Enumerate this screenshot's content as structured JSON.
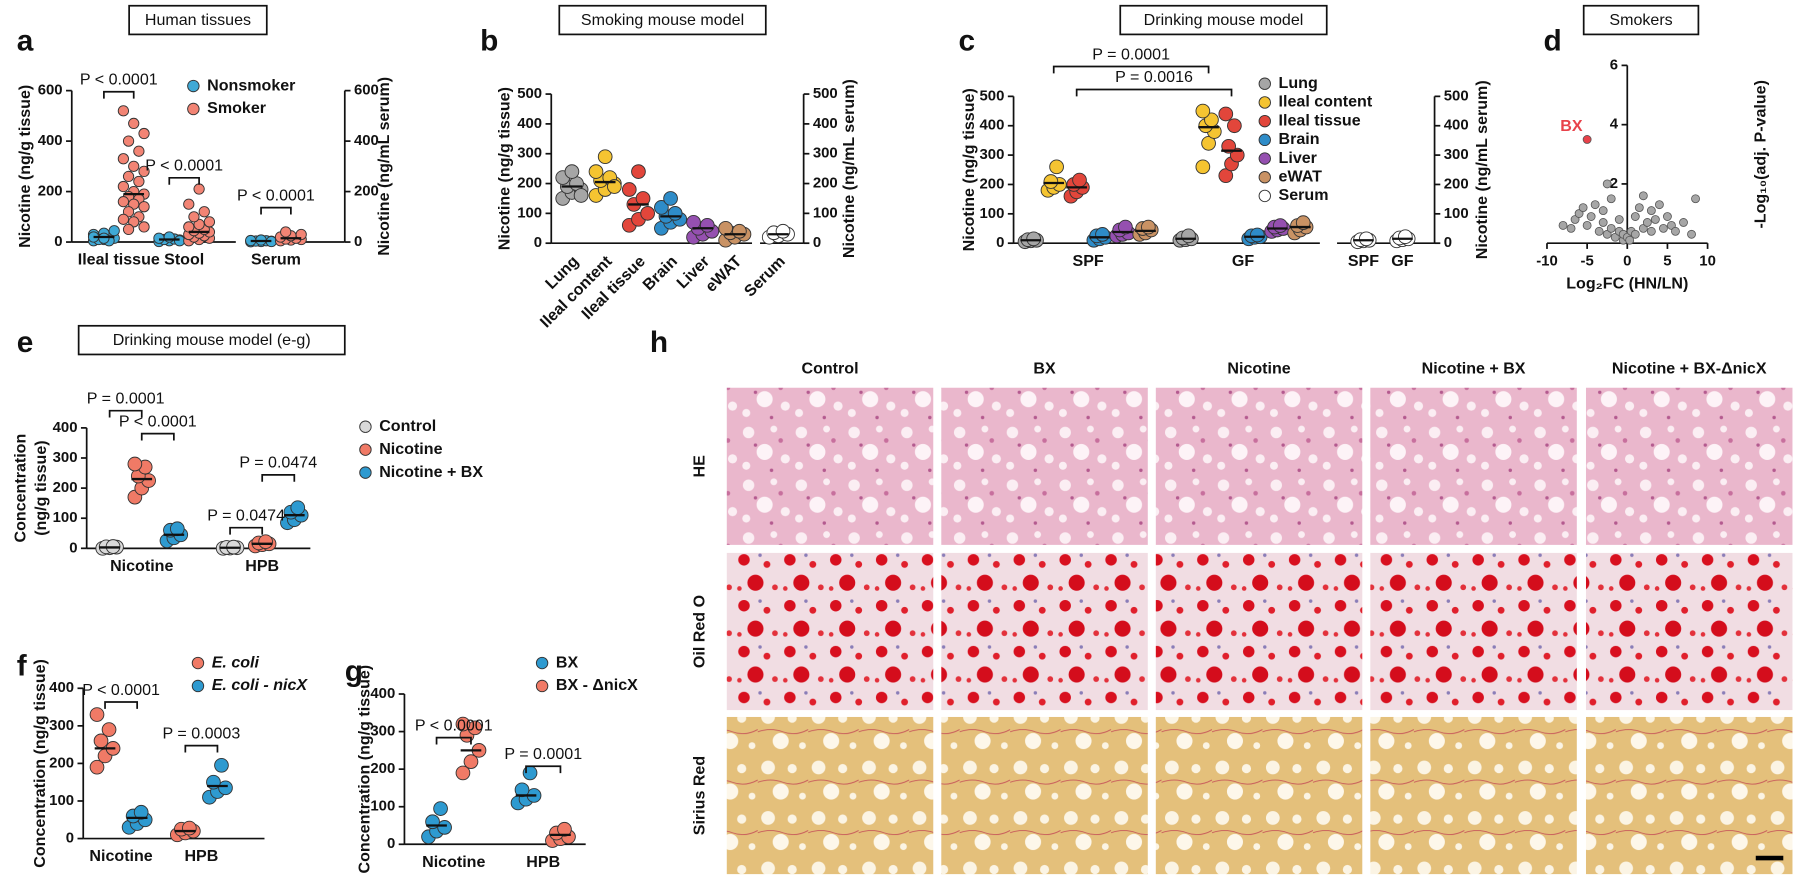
{
  "chart_data": [
    {
      "type": "dotplot",
      "letter": "a",
      "title": "Human tissues",
      "ylabel": "Nicotine (ng/g tissue)",
      "y2label": "Nicotine (ng/mL serum)",
      "categories": [
        "Ileal tissue",
        "Stool",
        "Serum"
      ],
      "category_axis": [
        "y",
        "y",
        "y2"
      ],
      "ylim": [
        0,
        600
      ],
      "yticks": [
        0,
        200,
        400,
        600
      ],
      "y2lim": [
        0,
        600
      ],
      "y2ticks": [
        0,
        200,
        400,
        600
      ],
      "series": [
        {
          "name": "Nonsmoker",
          "color": "#3fa9d6",
          "values": [
            [
              5,
              10,
              15,
              20,
              25,
              30,
              35,
              45,
              10,
              5,
              20,
              15
            ],
            [
              2,
              5,
              8,
              10,
              12,
              15,
              20,
              5
            ],
            [
              1,
              2,
              3,
              4,
              5,
              6,
              8,
              2
            ]
          ],
          "means": [
            20,
            10,
            4
          ]
        },
        {
          "name": "Smoker",
          "color": "#f28474",
          "values": [
            [
              520,
              470,
              430,
              400,
              360,
              330,
              300,
              280,
              260,
              240,
              220,
              200,
              190,
              180,
              170,
              160,
              150,
              140,
              120,
              100,
              90,
              80,
              60,
              50
            ],
            [
              5,
              10,
              15,
              20,
              25,
              30,
              35,
              40,
              45,
              50,
              60,
              70,
              80,
              100,
              120,
              150,
              210
            ],
            [
              5,
              8,
              10,
              12,
              15,
              20,
              25,
              30,
              40
            ]
          ],
          "means": [
            190,
            40,
            15
          ]
        }
      ],
      "pvalues": [
        "P < 0.0001",
        "P < 0.0001",
        "P < 0.0001"
      ]
    },
    {
      "type": "dotplot",
      "letter": "b",
      "title": "Smoking mouse model",
      "ylabel": "Nicotine (ng/g tissue)",
      "y2label": "Nicotine (ng/mL serum)",
      "categories": [
        "Lung",
        "Ileal content",
        "Ileal tissue",
        "Brain",
        "Liver",
        "eWAT",
        "Serum"
      ],
      "ylim": [
        0,
        500
      ],
      "yticks": [
        0,
        100,
        200,
        300,
        400,
        500
      ],
      "y2lim": [
        0,
        500
      ],
      "y2ticks": [
        0,
        100,
        200,
        300,
        400,
        500
      ],
      "series": [
        {
          "color": "#a6a6a6",
          "values": [
            [
              150,
              170,
              180,
              190,
              200,
              220,
              240,
              160
            ],
            null,
            null,
            null,
            null,
            null,
            null
          ],
          "means": [
            190,
            null,
            null,
            null,
            null,
            null,
            null
          ]
        },
        {
          "color": "#f5c431",
          "values": [
            null,
            [
              160,
              180,
              200,
              210,
              220,
              240,
              290,
              190
            ],
            null,
            null,
            null,
            null,
            null
          ],
          "means": [
            null,
            205,
            null,
            null,
            null,
            null,
            null
          ]
        },
        {
          "color": "#e2463b",
          "values": [
            null,
            null,
            [
              60,
              80,
              100,
              130,
              150,
              180,
              240
            ],
            null,
            null,
            null,
            null
          ],
          "means": [
            null,
            null,
            130,
            null,
            null,
            null,
            null
          ]
        },
        {
          "color": "#2e8cc8",
          "values": [
            null,
            null,
            null,
            [
              50,
              70,
              80,
              90,
              100,
              120,
              150
            ],
            null,
            null,
            null
          ],
          "means": [
            null,
            null,
            null,
            90,
            null,
            null,
            null
          ]
        },
        {
          "color": "#9550b0",
          "values": [
            null,
            null,
            null,
            null,
            [
              20,
              30,
              40,
              50,
              60,
              70
            ],
            null,
            null
          ],
          "means": [
            null,
            null,
            null,
            null,
            50,
            null,
            null
          ]
        },
        {
          "color": "#c99264",
          "values": [
            null,
            null,
            null,
            null,
            null,
            [
              10,
              20,
              30,
              35,
              40,
              50
            ],
            null
          ],
          "means": [
            null,
            null,
            null,
            null,
            null,
            30,
            null
          ]
        },
        {
          "color": "#ffffff",
          "axis": "y2",
          "values": [
            null,
            null,
            null,
            null,
            null,
            null,
            [
              20,
              25,
              30,
              35,
              40
            ]
          ],
          "means": [
            null,
            null,
            null,
            null,
            null,
            null,
            30
          ]
        }
      ]
    },
    {
      "type": "dotplot",
      "letter": "c",
      "title": "Drinking mouse model",
      "ylabel": "Nicotine (ng/g tissue)",
      "y2label": "Nicotine (ng/mL serum)",
      "categories": [
        "SPF",
        "GF",
        "SPF",
        "GF"
      ],
      "ylim": [
        0,
        500
      ],
      "yticks": [
        0,
        100,
        200,
        300,
        400,
        500
      ],
      "y2lim": [
        0,
        500
      ],
      "y2ticks": [
        0,
        100,
        200,
        300,
        400,
        500
      ],
      "series": [
        {
          "name": "Lung",
          "color": "#a6a6a6",
          "values": [
            [
              5,
              8,
              10,
              12,
              15
            ],
            [
              10,
              12,
              15,
              18,
              25
            ],
            null,
            null
          ],
          "means": [
            10,
            15,
            null,
            null
          ]
        },
        {
          "name": "Ileal content",
          "color": "#f5c431",
          "values": [
            [
              180,
              190,
              200,
              210,
              260
            ],
            [
              260,
              340,
              380,
              400,
              420,
              450
            ],
            null,
            null
          ],
          "means": [
            205,
            395,
            null,
            null
          ]
        },
        {
          "name": "Ileal tissue",
          "color": "#e2463b",
          "values": [
            [
              160,
              175,
              190,
              200,
              215
            ],
            [
              230,
              270,
              300,
              330,
              400,
              440
            ],
            null,
            null
          ],
          "means": [
            190,
            315,
            null,
            null
          ]
        },
        {
          "name": "Brain",
          "color": "#2e8cc8",
          "values": [
            [
              10,
              15,
              20,
              25,
              30
            ],
            [
              15,
              20,
              22,
              25,
              28
            ],
            null,
            null
          ],
          "means": [
            20,
            22,
            null,
            null
          ]
        },
        {
          "name": "Liver",
          "color": "#9550b0",
          "values": [
            [
              25,
              30,
              35,
              45,
              55
            ],
            [
              40,
              45,
              50,
              55,
              60
            ],
            null,
            null
          ],
          "means": [
            38,
            50,
            null,
            null
          ]
        },
        {
          "name": "eWAT",
          "color": "#c99264",
          "values": [
            [
              30,
              35,
              45,
              50,
              55
            ],
            [
              35,
              45,
              55,
              60,
              70
            ],
            null,
            null
          ],
          "means": [
            42,
            55,
            null,
            null
          ]
        },
        {
          "name": "Serum",
          "color": "#ffffff",
          "axis": "y2",
          "values": [
            null,
            null,
            [
              5,
              8,
              10,
              12,
              15
            ],
            [
              8,
              12,
              15,
              18,
              22
            ]
          ],
          "means": [
            null,
            null,
            10,
            15
          ]
        }
      ],
      "pvalues": [
        "P = 0.0001",
        "P = 0.0016"
      ]
    },
    {
      "type": "scatter",
      "letter": "d",
      "title": "Smokers",
      "xlabel": "Log₂FC (HN/LN)",
      "ylabel": "-Log₁₀(adj. P-value)",
      "xlim": [
        -10,
        10
      ],
      "xticks": [
        -10,
        -5,
        0,
        5,
        10
      ],
      "ylim": [
        0,
        6
      ],
      "yticks": [
        2,
        4,
        6
      ],
      "color": "#a6a6a6",
      "x": [
        -8,
        -7,
        -6.5,
        -6,
        -5.5,
        -5,
        -4.5,
        -4,
        -3.5,
        -3,
        -3,
        -2.5,
        -2,
        -2,
        -1.5,
        -1,
        -1,
        -0.5,
        -0.5,
        0,
        0.3,
        0.5,
        1,
        1,
        1.5,
        2,
        2,
        2.5,
        3,
        3,
        3.5,
        4,
        4.5,
        5,
        5.5,
        6,
        7,
        8,
        8.5,
        -2.5
      ],
      "y": [
        0.6,
        0.5,
        0.8,
        1,
        1.2,
        0.6,
        0.9,
        1.3,
        0.4,
        0.7,
        1.1,
        0.3,
        0.5,
        1.5,
        0.2,
        0.4,
        0.8,
        0.1,
        0.3,
        0.2,
        0.1,
        0.4,
        0.3,
        0.9,
        1.2,
        0.5,
        1.6,
        0.7,
        0.4,
        1.1,
        0.8,
        1.3,
        0.5,
        0.9,
        0.6,
        0.4,
        0.7,
        0.3,
        1.5,
        2.0
      ],
      "highlight": {
        "label": "BX",
        "x": -5,
        "y": 3.5,
        "color": "#e8424a"
      }
    },
    {
      "type": "dotplot",
      "letter": "e",
      "title": "Drinking mouse model (e-g)",
      "ylabel": [
        "Concentration",
        "(ng/g tissue)"
      ],
      "categories": [
        "Nicotine",
        "HPB"
      ],
      "ylim": [
        0,
        400
      ],
      "yticks": [
        0,
        100,
        200,
        300,
        400
      ],
      "series": [
        {
          "name": "Control",
          "color": "#d9d9d9",
          "values": [
            [
              0,
              2,
              4,
              5,
              6
            ],
            [
              0,
              1,
              2,
              3,
              4
            ]
          ],
          "means": [
            3,
            2
          ]
        },
        {
          "name": "Nicotine",
          "color": "#f07a66",
          "values": [
            [
              170,
              200,
              225,
              240,
              270,
              280
            ],
            [
              8,
              12,
              15,
              18,
              22
            ]
          ],
          "means": [
            230,
            15
          ]
        },
        {
          "name": "Nicotine + BX",
          "color": "#2e9ad0",
          "values": [
            [
              25,
              35,
              45,
              60,
              65
            ],
            [
              85,
              95,
              110,
              120,
              135
            ]
          ],
          "means": [
            45,
            110
          ]
        }
      ],
      "pvalues": [
        "P = 0.0001",
        "P < 0.0001",
        "P = 0.0474",
        "P = 0.0474"
      ]
    },
    {
      "type": "dotplot",
      "letter": "f",
      "ylabel": "Concentration (ng/g tissue)",
      "categories": [
        "Nicotine",
        "HPB"
      ],
      "ylim": [
        0,
        400
      ],
      "yticks": [
        0,
        100,
        200,
        300,
        400
      ],
      "series": [
        {
          "name": "E. coli",
          "color": "#f07a66",
          "values": [
            [
              190,
              220,
              240,
              260,
              290,
              330
            ],
            [
              10,
              15,
              20,
              25,
              28
            ]
          ],
          "means": [
            240,
            20
          ]
        },
        {
          "name": "E. coli - nicX",
          "color": "#2e9ad0",
          "values": [
            [
              30,
              40,
              50,
              60,
              70
            ],
            [
              110,
              125,
              135,
              150,
              195
            ]
          ],
          "means": [
            55,
            140
          ]
        }
      ],
      "pvalues": [
        "P < 0.0001",
        "P = 0.0003"
      ]
    },
    {
      "type": "dotplot",
      "letter": "g",
      "ylabel": "Concentration (ng/g tissue)",
      "categories": [
        "Nicotine",
        "HPB"
      ],
      "ylim": [
        0,
        400
      ],
      "yticks": [
        0,
        100,
        200,
        300,
        400
      ],
      "series": [
        {
          "name": "BX",
          "color": "#2e9ad0",
          "values": [
            [
              20,
              35,
              45,
              60,
              95
            ],
            [
              110,
              120,
              130,
              145,
              190
            ]
          ],
          "means": [
            50,
            130
          ]
        },
        {
          "name": "BX - ΔnicX",
          "color": "#f07a66",
          "values": [
            [
              190,
              220,
              250,
              290,
              310,
              320
            ],
            [
              10,
              15,
              20,
              30,
              40
            ]
          ],
          "means": [
            250,
            25
          ]
        }
      ],
      "pvalues": [
        "P < 0.0001",
        "P = 0.0001"
      ]
    }
  ],
  "panel_h": {
    "letter": "h",
    "columns": [
      "Control",
      "BX",
      "Nicotine",
      "Nicotine + BX",
      "Nicotine + BX-ΔnicX"
    ],
    "rows": [
      "HE",
      "Oil Red O",
      "Sirius Red"
    ]
  }
}
